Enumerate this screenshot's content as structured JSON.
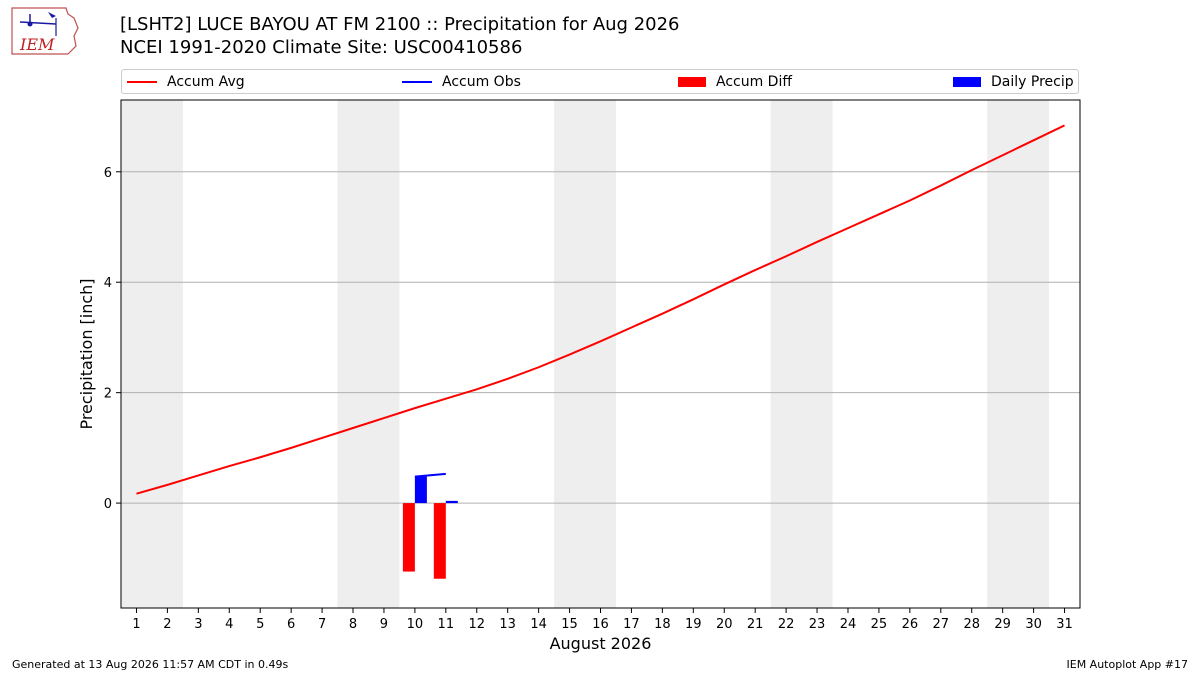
{
  "header": {
    "title_line1": "[LSHT2] LUCE BAYOU AT FM 2100 :: Precipitation for Aug 2026",
    "title_line2": "NCEI 1991-2020 Climate Site: USC00410586",
    "logo_text": "IEM"
  },
  "footer": {
    "left": "Generated at 13 Aug 2026 11:57 AM CDT in 0.49s",
    "right": "IEM Autoplot App #17"
  },
  "colors": {
    "avg": "#ff0000",
    "obs": "#0000ff",
    "diff": "#ff0000",
    "daily": "#0000ff",
    "weekend_shade": "#eeeeee",
    "grid": "#b0b0b0"
  },
  "chart_data": {
    "type": "bar",
    "title": "[LSHT2] LUCE BAYOU AT FM 2100 :: Precipitation for Aug 2026",
    "subtitle": "NCEI 1991-2020 Climate Site: USC00410586",
    "xlabel": "August 2026",
    "ylabel": "Precipitation [inch]",
    "x": [
      1,
      2,
      3,
      4,
      5,
      6,
      7,
      8,
      9,
      10,
      11,
      12,
      13,
      14,
      15,
      16,
      17,
      18,
      19,
      20,
      21,
      22,
      23,
      24,
      25,
      26,
      27,
      28,
      29,
      30,
      31
    ],
    "xlim": [
      0.5,
      31.5
    ],
    "ylim": [
      -1.9,
      7.3
    ],
    "yticks": [
      0,
      2,
      4,
      6
    ],
    "grid": "y",
    "legend_position": "top",
    "shaded_days": [
      [
        0.5,
        2.5
      ],
      [
        7.5,
        9.5
      ],
      [
        14.5,
        16.5
      ],
      [
        21.5,
        23.5
      ],
      [
        28.5,
        30.5
      ]
    ],
    "series": [
      {
        "name": "Accum Avg",
        "kind": "line",
        "x": [
          1,
          2,
          3,
          4,
          5,
          6,
          7,
          8,
          9,
          10,
          11,
          12,
          13,
          14,
          15,
          16,
          17,
          18,
          19,
          20,
          21,
          22,
          23,
          24,
          25,
          26,
          27,
          28,
          29,
          30,
          31
        ],
        "values": [
          0.17,
          0.33,
          0.5,
          0.67,
          0.83,
          1.0,
          1.18,
          1.36,
          1.54,
          1.72,
          1.89,
          2.06,
          2.25,
          2.46,
          2.69,
          2.93,
          3.18,
          3.43,
          3.69,
          3.96,
          4.22,
          4.47,
          4.73,
          4.98,
          5.23,
          5.48,
          5.75,
          6.03,
          6.3,
          6.57,
          6.84
        ]
      },
      {
        "name": "Accum Obs",
        "kind": "line",
        "x": [
          10,
          11
        ],
        "values": [
          0.48,
          0.53
        ]
      },
      {
        "name": "Accum Diff",
        "kind": "bar",
        "x": [
          10,
          11
        ],
        "values": [
          -1.24,
          -1.37
        ]
      },
      {
        "name": "Daily Precip",
        "kind": "bar",
        "x": [
          10,
          11
        ],
        "values": [
          0.48,
          0.04
        ]
      }
    ]
  }
}
